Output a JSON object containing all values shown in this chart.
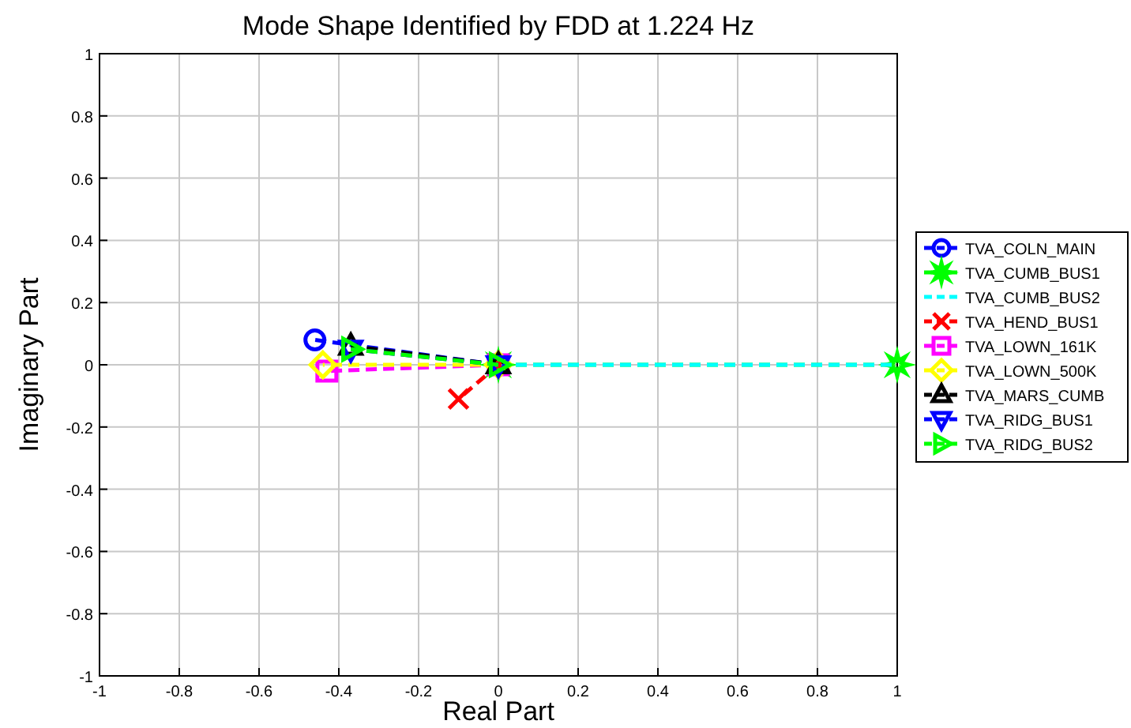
{
  "chart_data": {
    "type": "line",
    "title": "Mode Shape Identified by FDD at 1.224 Hz",
    "xlabel": "Real Part",
    "ylabel": "Imaginary Part",
    "xlim": [
      -1,
      1
    ],
    "ylim": [
      -1,
      1
    ],
    "xticks": [
      -1,
      -0.8,
      -0.6,
      -0.4,
      -0.2,
      0,
      0.2,
      0.4,
      0.6,
      0.8,
      1
    ],
    "yticks": [
      -1,
      -0.8,
      -0.6,
      -0.4,
      -0.2,
      0,
      0.2,
      0.4,
      0.6,
      0.8,
      1
    ],
    "grid": true,
    "legend": "right",
    "line_style": "dashed",
    "series": [
      {
        "name": "TVA_COLN_MAIN",
        "color": "#0000ff",
        "marker": "circle",
        "x": [
          0,
          -0.46
        ],
        "values": [
          0,
          0.08
        ]
      },
      {
        "name": "TVA_CUMB_BUS1",
        "color": "#00ff00",
        "marker": "star",
        "x": [
          0,
          1
        ],
        "values": [
          0,
          0
        ]
      },
      {
        "name": "TVA_CUMB_BUS2",
        "color": "#00ffff",
        "marker": "none",
        "x": [
          0,
          1
        ],
        "values": [
          0,
          0
        ]
      },
      {
        "name": "TVA_HEND_BUS1",
        "color": "#ff0000",
        "marker": "cross",
        "x": [
          0,
          -0.1
        ],
        "values": [
          0,
          -0.11
        ]
      },
      {
        "name": "TVA_LOWN_161K",
        "color": "#ff00ff",
        "marker": "square",
        "x": [
          0,
          -0.43
        ],
        "values": [
          0,
          -0.02
        ]
      },
      {
        "name": "TVA_LOWN_500K",
        "color": "#ffff00",
        "marker": "diamond",
        "x": [
          0,
          -0.44
        ],
        "values": [
          0,
          0
        ]
      },
      {
        "name": "TVA_MARS_CUMB",
        "color": "#000000",
        "marker": "triangle",
        "x": [
          0,
          -0.37
        ],
        "values": [
          0,
          0.06
        ]
      },
      {
        "name": "TVA_RIDG_BUS1",
        "color": "#0000ff",
        "marker": "triangle-down",
        "x": [
          0,
          -0.37
        ],
        "values": [
          0,
          0.05
        ]
      },
      {
        "name": "TVA_RIDG_BUS2",
        "color": "#00ff00",
        "marker": "triangle-right",
        "x": [
          0,
          -0.37
        ],
        "values": [
          0,
          0.05
        ]
      }
    ]
  }
}
